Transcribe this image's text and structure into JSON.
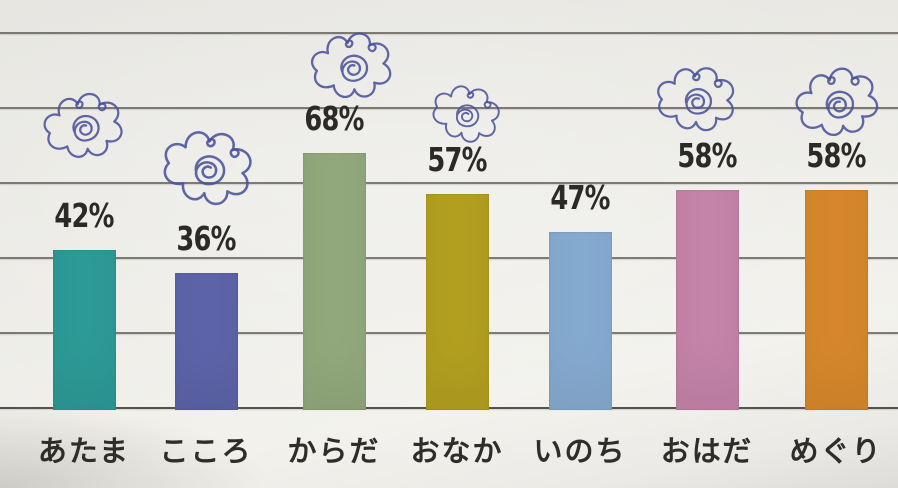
{
  "chart_data": {
    "type": "bar",
    "title": "",
    "categories": [
      "あたま",
      "こころ",
      "からだ",
      "おなか",
      "いのち",
      "おはだ",
      "めぐり"
    ],
    "values": [
      42,
      36,
      68,
      57,
      47,
      58,
      58
    ],
    "value_labels": [
      "42%",
      "36%",
      "68%",
      "57%",
      "47%",
      "58%",
      "58%"
    ],
    "bar_colors": [
      "#2d9b97",
      "#5d64a9",
      "#92a97c",
      "#b3a020",
      "#86abd0",
      "#c584aa",
      "#d8882b"
    ],
    "doodle_marked": [
      true,
      true,
      true,
      true,
      false,
      true,
      true
    ],
    "xlabel": "",
    "ylabel": "",
    "ylim": [
      0,
      100
    ],
    "gridline_step_percent": 20,
    "grid": true,
    "legend": false,
    "annotation": "hand-drawn blue ink flower doodles above marked bars"
  },
  "style": {
    "paper_color": "#ecebe6",
    "gridline_color": "#56534c",
    "text_color": "#2b2a26",
    "doodle_ink_color": "#49529b"
  }
}
